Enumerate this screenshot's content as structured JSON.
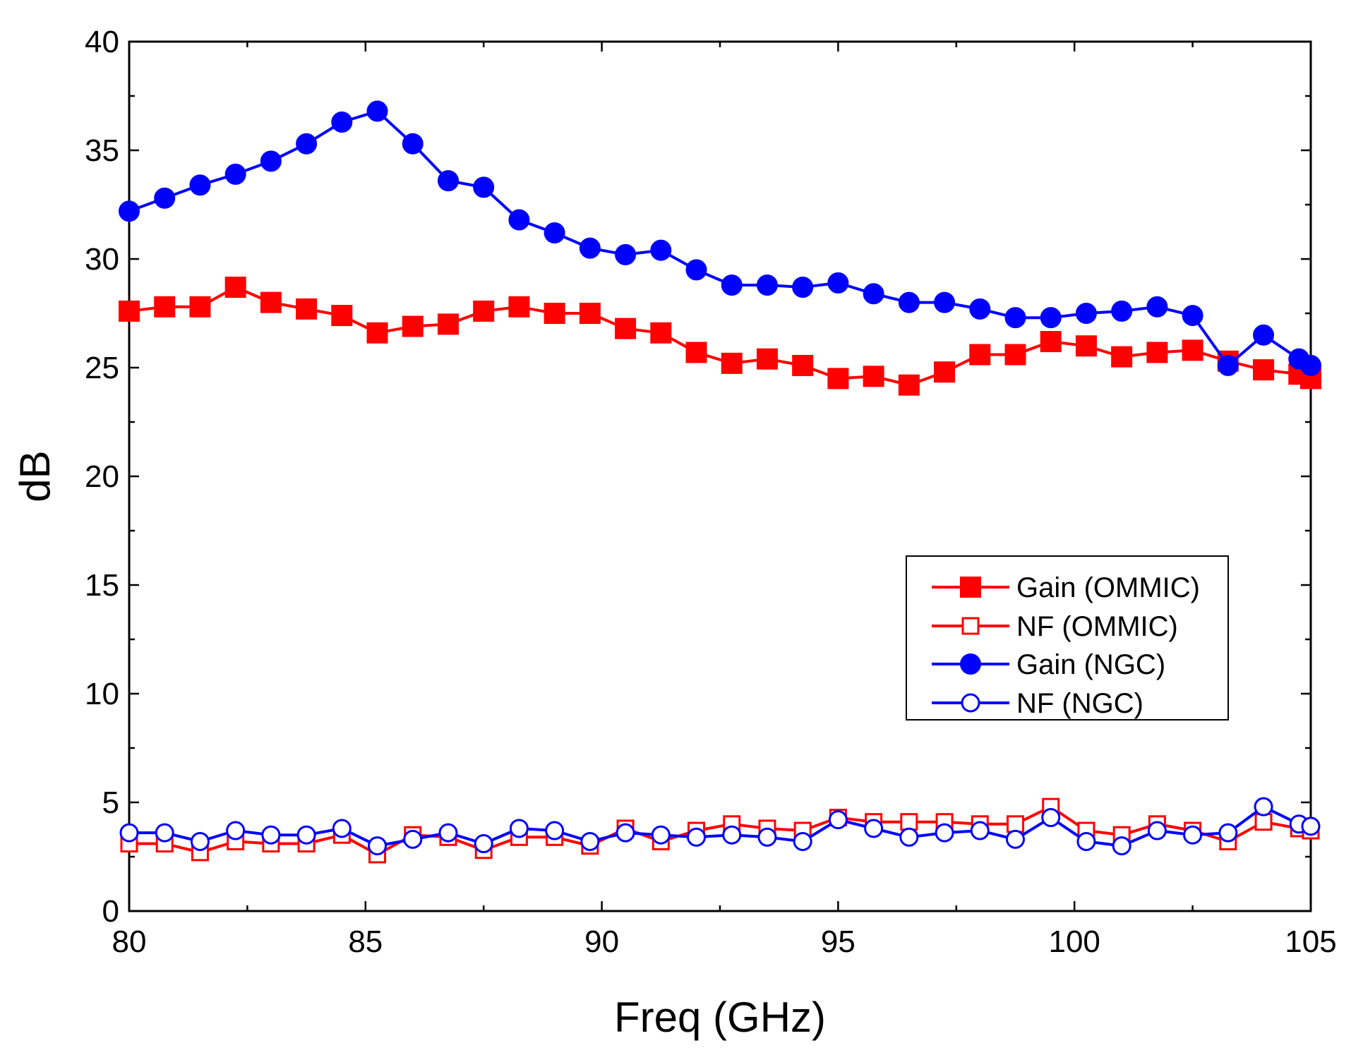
{
  "chart_data": {
    "type": "line",
    "title": "",
    "xlabel": "Freq (GHz)",
    "ylabel": "dB",
    "xlim": [
      80,
      105
    ],
    "ylim": [
      0,
      40
    ],
    "xticks": [
      80,
      85,
      90,
      95,
      100,
      105
    ],
    "yticks": [
      0,
      5,
      10,
      15,
      20,
      25,
      30,
      35,
      40
    ],
    "grid": false,
    "legend_position": "center-right",
    "series": [
      {
        "name": "Gain (OMMIC)",
        "color": "#ff0000",
        "marker": "filled-square",
        "x": [
          80,
          80.75,
          81.5,
          82.25,
          83,
          83.75,
          84.5,
          85.25,
          86,
          86.75,
          87.5,
          88.25,
          89,
          89.75,
          90.5,
          91.25,
          92,
          92.75,
          93.5,
          94.25,
          95,
          95.75,
          96.5,
          97.25,
          98,
          98.75,
          99.5,
          100.25,
          101,
          101.75,
          102.5,
          103.25,
          104,
          104.75,
          105
        ],
        "y": [
          27.6,
          27.8,
          27.8,
          28.7,
          28.0,
          27.7,
          27.4,
          26.6,
          26.9,
          27.0,
          27.6,
          27.8,
          27.5,
          27.5,
          26.8,
          26.6,
          25.7,
          25.2,
          25.4,
          25.1,
          24.5,
          24.6,
          24.2,
          24.8,
          25.6,
          25.6,
          26.2,
          26.0,
          25.5,
          25.7,
          25.8,
          25.3,
          24.9,
          24.7,
          24.5
        ]
      },
      {
        "name": "NF (OMMIC)",
        "color": "#ff0000",
        "marker": "open-square",
        "x": [
          80,
          80.75,
          81.5,
          82.25,
          83,
          83.75,
          84.5,
          85.25,
          86,
          86.75,
          87.5,
          88.25,
          89,
          89.75,
          90.5,
          91.25,
          92,
          92.75,
          93.5,
          94.25,
          95,
          95.75,
          96.5,
          97.25,
          98,
          98.75,
          99.5,
          100.25,
          101,
          101.75,
          102.5,
          103.25,
          104,
          104.75,
          105
        ],
        "y": [
          3.1,
          3.1,
          2.7,
          3.2,
          3.1,
          3.1,
          3.5,
          2.6,
          3.5,
          3.4,
          2.8,
          3.4,
          3.4,
          3.0,
          3.8,
          3.2,
          3.7,
          4.0,
          3.8,
          3.7,
          4.3,
          4.1,
          4.1,
          4.1,
          4.0,
          4.0,
          4.8,
          3.7,
          3.5,
          4.0,
          3.7,
          3.2,
          4.1,
          3.8,
          3.7
        ]
      },
      {
        "name": "Gain (NGC)",
        "color": "#0000ff",
        "marker": "filled-circle",
        "x": [
          80,
          80.75,
          81.5,
          82.25,
          83,
          83.75,
          84.5,
          85.25,
          86,
          86.75,
          87.5,
          88.25,
          89,
          89.75,
          90.5,
          91.25,
          92,
          92.75,
          93.5,
          94.25,
          95,
          95.75,
          96.5,
          97.25,
          98,
          98.75,
          99.5,
          100.25,
          101,
          101.75,
          102.5,
          103.25,
          104,
          104.75,
          105
        ],
        "y": [
          32.2,
          32.8,
          33.4,
          33.9,
          34.5,
          35.3,
          36.3,
          36.8,
          35.3,
          33.6,
          33.3,
          31.8,
          31.2,
          30.5,
          30.2,
          30.4,
          29.5,
          28.8,
          28.8,
          28.7,
          28.9,
          28.4,
          28.0,
          28.0,
          27.7,
          27.3,
          27.3,
          27.5,
          27.6,
          27.8,
          27.4,
          25.1,
          26.5,
          25.4,
          25.1
        ]
      },
      {
        "name": "NF (NGC)",
        "color": "#0000ff",
        "marker": "open-circle",
        "x": [
          80,
          80.75,
          81.5,
          82.25,
          83,
          83.75,
          84.5,
          85.25,
          86,
          86.75,
          87.5,
          88.25,
          89,
          89.75,
          90.5,
          91.25,
          92,
          92.75,
          93.5,
          94.25,
          95,
          95.75,
          96.5,
          97.25,
          98,
          98.75,
          99.5,
          100.25,
          101,
          101.75,
          102.5,
          103.25,
          104,
          104.75,
          105
        ],
        "y": [
          3.6,
          3.6,
          3.2,
          3.7,
          3.5,
          3.5,
          3.8,
          3.0,
          3.3,
          3.6,
          3.1,
          3.8,
          3.7,
          3.2,
          3.6,
          3.5,
          3.4,
          3.5,
          3.4,
          3.2,
          4.2,
          3.8,
          3.4,
          3.6,
          3.7,
          3.3,
          4.3,
          3.2,
          3.0,
          3.7,
          3.5,
          3.6,
          4.8,
          4.0,
          3.9
        ]
      }
    ]
  }
}
